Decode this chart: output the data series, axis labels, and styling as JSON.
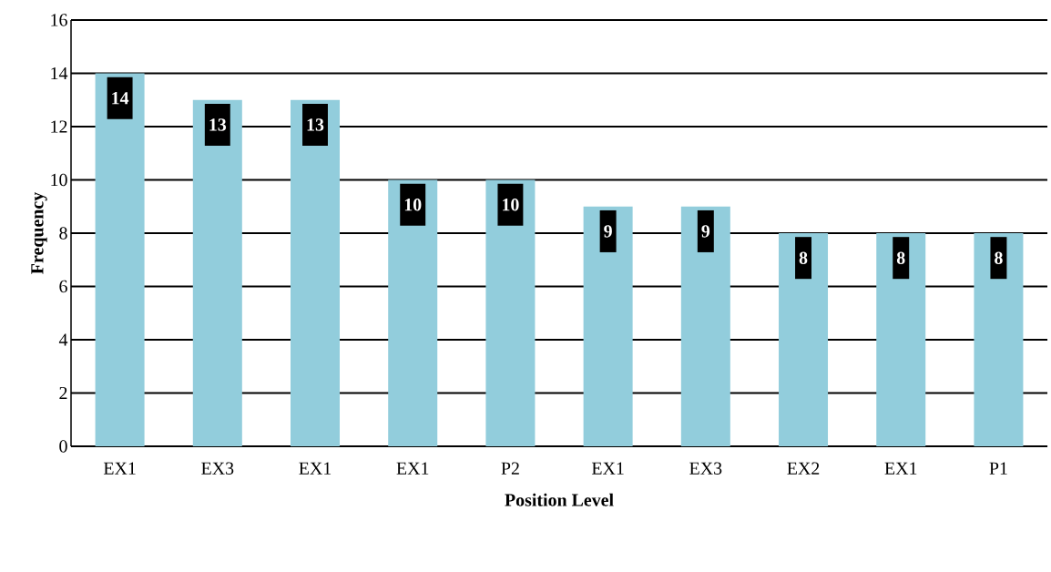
{
  "chart_data": {
    "type": "bar",
    "xlabel": "Position Level",
    "ylabel": "Frequency",
    "categories": [
      "EX1",
      "EX3",
      "EX1",
      "EX1",
      "P2",
      "EX1",
      "EX3",
      "EX2",
      "EX1",
      "P1"
    ],
    "values": [
      14,
      13,
      13,
      10,
      10,
      9,
      9,
      8,
      8,
      8
    ],
    "color": "#92cddc",
    "ylim": [
      0,
      16
    ],
    "yticks": [
      0,
      2,
      4,
      6,
      8,
      10,
      12,
      14,
      16
    ],
    "grid": "y",
    "data_labels": true
  }
}
